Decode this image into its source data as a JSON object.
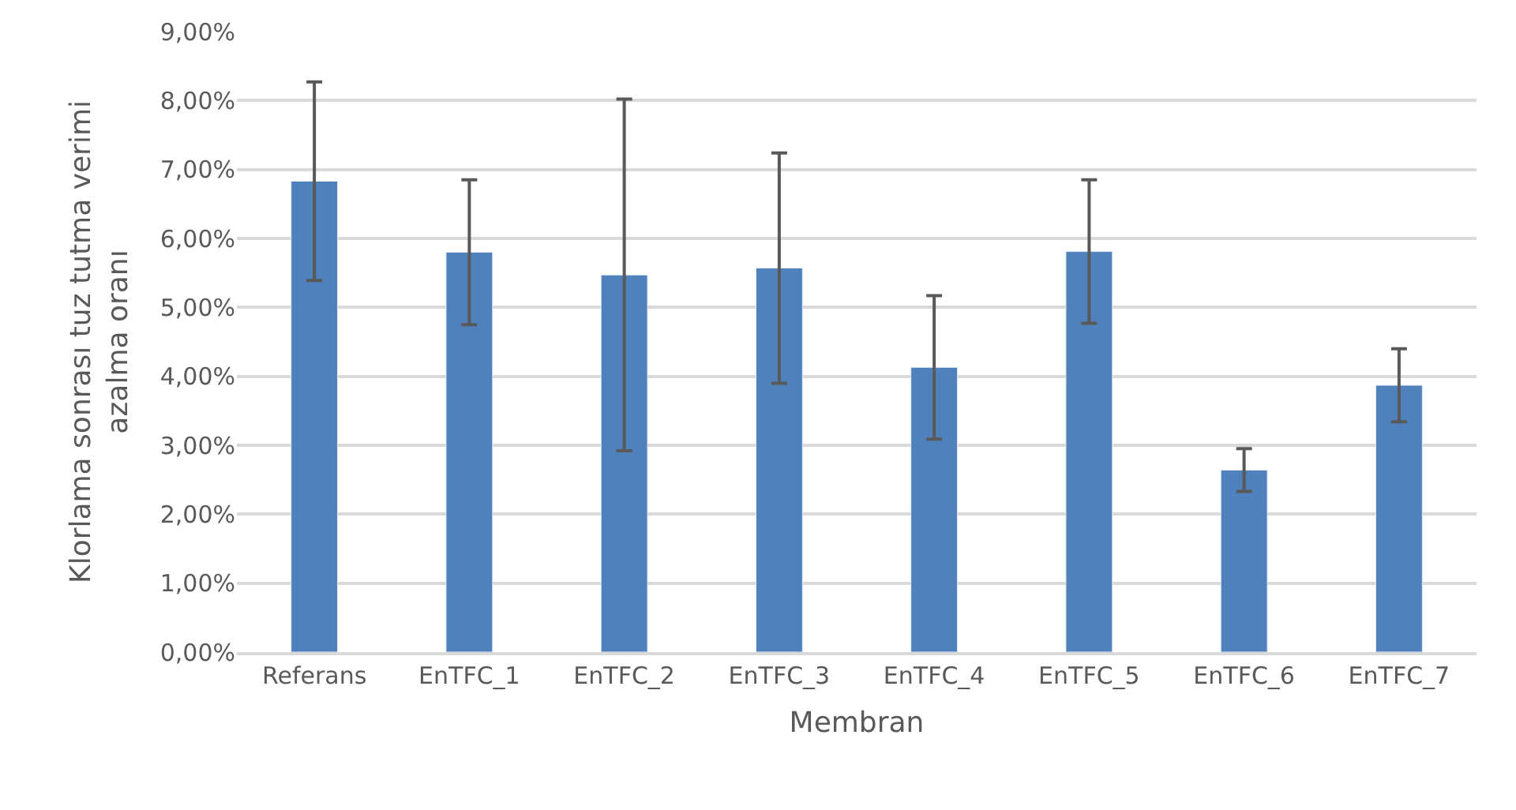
{
  "chart_data": {
    "type": "bar",
    "xlabel": "Membran",
    "ylabel": "Klorlama sonrası tuz tutma verimi azalma oranı",
    "categories": [
      "Referans",
      "EnTFC_1",
      "EnTFC_2",
      "EnTFC_3",
      "EnTFC_4",
      "EnTFC_5",
      "EnTFC_6",
      "EnTFC_7"
    ],
    "values": [
      6.83,
      5.8,
      5.47,
      5.57,
      4.13,
      5.81,
      2.64,
      3.87
    ],
    "errors": [
      1.44,
      1.05,
      2.55,
      1.67,
      1.04,
      1.04,
      0.31,
      0.53
    ],
    "color": "#4f81bd",
    "ylim": [
      0,
      9
    ],
    "yticks": [
      {
        "value": 0,
        "label": "0,00%"
      },
      {
        "value": 1,
        "label": "1,00%"
      },
      {
        "value": 2,
        "label": "2,00%"
      },
      {
        "value": 3,
        "label": "3,00%"
      },
      {
        "value": 4,
        "label": "4,00%"
      },
      {
        "value": 5,
        "label": "5,00%"
      },
      {
        "value": 6,
        "label": "6,00%"
      },
      {
        "value": 7,
        "label": "7,00%"
      },
      {
        "value": 8,
        "label": "8,00%"
      },
      {
        "value": 9,
        "label": "9,00%"
      }
    ],
    "grid": "y",
    "legend": false
  }
}
